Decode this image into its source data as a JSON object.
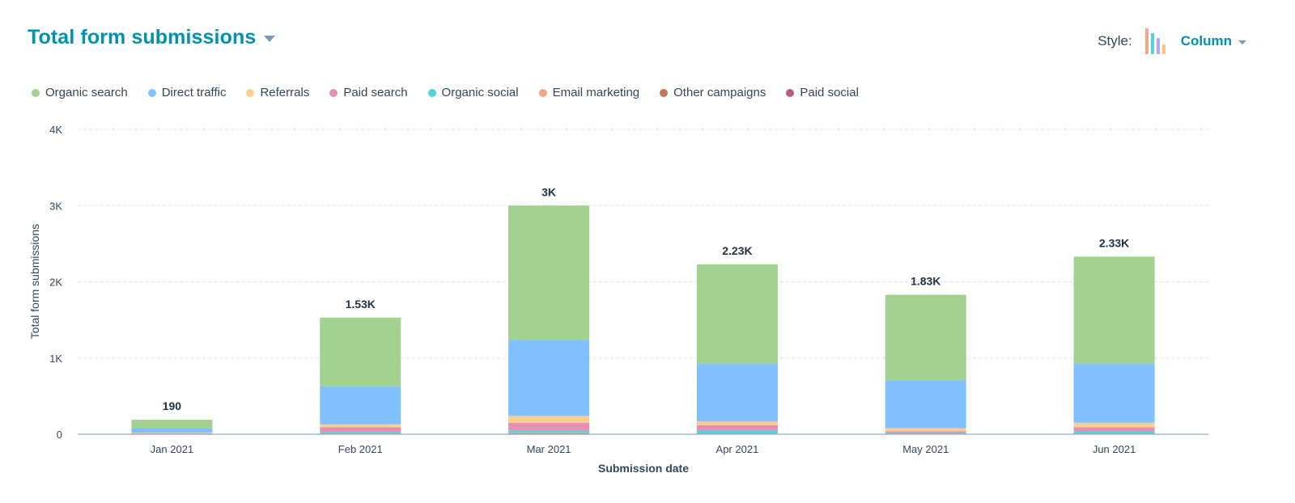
{
  "header": {
    "title": "Total form submissions",
    "style_label": "Style:",
    "style_value": "Column",
    "style_icon_colors": [
      "#f8a58d",
      "#51d3d9",
      "#b9a4e8",
      "#fcc47e"
    ]
  },
  "chart_data": {
    "type": "stacked_bar",
    "title": "Total form submissions",
    "xlabel": "Submission date",
    "ylabel": "Total form submissions",
    "ylim": [
      0,
      4000
    ],
    "yticks": [
      0,
      1000,
      2000,
      3000,
      4000
    ],
    "ytick_labels": [
      "0",
      "1K",
      "2K",
      "3K",
      "4K"
    ],
    "grid": true,
    "legend_position": "top-left",
    "categories": [
      "Jan 2021",
      "Feb 2021",
      "Mar 2021",
      "Apr 2021",
      "May 2021",
      "Jun 2021"
    ],
    "totals": [
      "190",
      "1.53K",
      "3K",
      "2.23K",
      "1.83K",
      "2.33K"
    ],
    "series": [
      {
        "name": "Organic search",
        "color": "#a2d28f",
        "values": [
          110,
          900,
          1760,
          1300,
          1120,
          1400
        ]
      },
      {
        "name": "Direct traffic",
        "color": "#80c0ff",
        "values": [
          60,
          500,
          1000,
          760,
          630,
          780
        ]
      },
      {
        "name": "Referrals",
        "color": "#fdcd92",
        "values": [
          10,
          40,
          90,
          50,
          40,
          60
        ]
      },
      {
        "name": "Paid search",
        "color": "#e68fb2",
        "values": [
          5,
          60,
          100,
          70,
          20,
          50
        ]
      },
      {
        "name": "Organic social",
        "color": "#51d3d9",
        "values": [
          3,
          20,
          30,
          40,
          10,
          30
        ]
      },
      {
        "name": "Email marketing",
        "color": "#f8a58d",
        "values": [
          1,
          5,
          10,
          5,
          5,
          5
        ]
      },
      {
        "name": "Other campaigns",
        "color": "#c8765a",
        "values": [
          1,
          3,
          5,
          3,
          3,
          3
        ]
      },
      {
        "name": "Paid social",
        "color": "#b85c85",
        "values": [
          0,
          2,
          5,
          2,
          2,
          2
        ]
      }
    ]
  }
}
